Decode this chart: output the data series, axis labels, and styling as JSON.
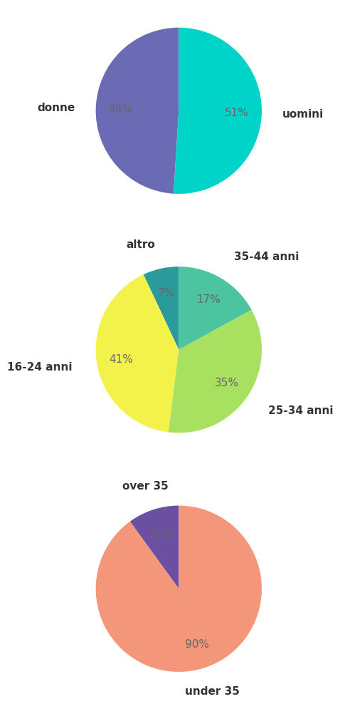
{
  "chart1": {
    "labels": [
      "donne",
      "uomini"
    ],
    "values": [
      49,
      51
    ],
    "colors": [
      "#6B6BB5",
      "#00D4C8"
    ],
    "startangle": 90
  },
  "chart2": {
    "labels": [
      "16-24 anni",
      "25-34 anni",
      "35-44 anni",
      "altro"
    ],
    "values": [
      41,
      35,
      17,
      7
    ],
    "colors": [
      "#F2F24A",
      "#A8E060",
      "#4DC4A0",
      "#2B9A9A"
    ],
    "startangle": 0
  },
  "chart3": {
    "labels": [
      "under 35",
      "over 35"
    ],
    "values": [
      90,
      10
    ],
    "colors": [
      "#F4967A",
      "#6B4FA0"
    ],
    "startangle": 72
  },
  "label_fontsize": 11,
  "pct_fontsize": 11,
  "label_color": "#666666",
  "bold_label": true
}
